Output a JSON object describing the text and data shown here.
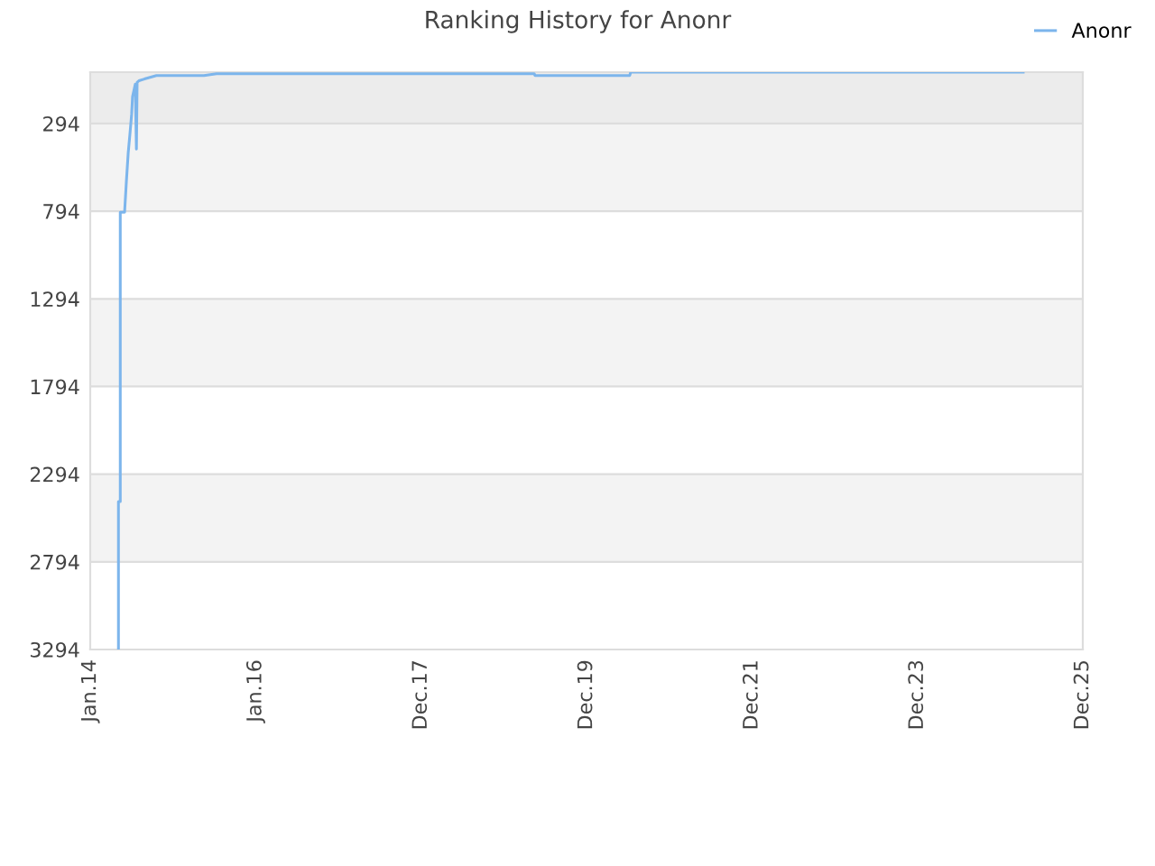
{
  "chart_data": {
    "type": "line",
    "title": "Ranking History for Anonr",
    "x": [
      "2014-05-09",
      "2014-05-09",
      "2014-05-17",
      "2014-05-17",
      "2014-06-05",
      "2014-06-13",
      "2014-06-21",
      "2014-06-28",
      "2014-07-06",
      "2014-07-10",
      "2014-07-22",
      "2014-07-27",
      "2014-07-30",
      "2014-08-07",
      "2014-08-31",
      "2014-10-23",
      "2015-05-20",
      "2015-07-14",
      "2019-05-10",
      "2019-05-14",
      "2020-07-03",
      "2020-07-07",
      "2025-03-28"
    ],
    "series": [
      {
        "name": "Anonr",
        "color": "#7cb5ec",
        "values": [
          3294,
          2450,
          2450,
          800,
          800,
          620,
          460,
          360,
          240,
          140,
          70,
          440,
          60,
          50,
          40,
          20,
          20,
          10,
          10,
          20,
          20,
          1,
          1
        ]
      }
    ],
    "xlim": [
      "2014-01-05",
      "2025-12-15"
    ],
    "xticks": [
      {
        "value": "2014-01-05",
        "label": "Jan.14"
      },
      {
        "value": "2016-01-02",
        "label": "Jan.16"
      },
      {
        "value": "2017-12-29",
        "label": "Dec.17"
      },
      {
        "value": "2019-12-26",
        "label": "Dec.19"
      },
      {
        "value": "2021-12-22",
        "label": "Dec.21"
      },
      {
        "value": "2023-12-19",
        "label": "Dec.23"
      },
      {
        "value": "2025-12-15",
        "label": "Dec.25"
      }
    ],
    "ylim": [
      3294,
      1
    ],
    "yticks": [
      294,
      794,
      1294,
      1794,
      2294,
      2794,
      3294
    ],
    "bands": [
      {
        "axis": "y",
        "from": 1,
        "to": 294,
        "color": "#ececec"
      },
      {
        "axis": "y",
        "from": 294,
        "to": 794,
        "color": "#f3f3f3"
      },
      {
        "axis": "y",
        "from": 1294,
        "to": 1794,
        "color": "#f3f3f3"
      },
      {
        "axis": "y",
        "from": 2294,
        "to": 2794,
        "color": "#f3f3f3"
      }
    ],
    "grid": "y",
    "legend": "top right",
    "marker": "none",
    "line_style": "solid"
  }
}
